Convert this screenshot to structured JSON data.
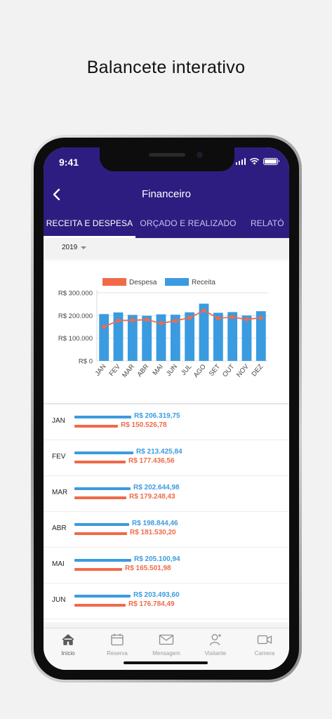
{
  "headline": "Balancete interativo",
  "status": {
    "time": "9:41"
  },
  "nav": {
    "title": "Financeiro"
  },
  "tabs": [
    "RECEITA E DESPESA",
    "ORÇADO E REALIZADO",
    "RELATÓ"
  ],
  "year": "2019",
  "colors": {
    "brand": "#2d1d80",
    "receita": "#3b9be0",
    "despesa": "#f06a4a"
  },
  "chart_data": {
    "type": "bar",
    "legend": [
      "Despesa",
      "Receita"
    ],
    "categories": [
      "JAN",
      "FEV",
      "MAR",
      "ABR",
      "MAI",
      "JUN",
      "JUL",
      "AGO",
      "SET",
      "OUT",
      "NOV",
      "DEZ"
    ],
    "yticks": [
      "R$ 300.000",
      "R$ 200.000",
      "R$ 100.000",
      "R$ 0"
    ],
    "ylim": [
      0,
      300000
    ],
    "series": [
      {
        "name": "Receita",
        "type": "bar",
        "values": [
          206319.75,
          213425.84,
          202644.98,
          198844.46,
          205100.94,
          203493.6,
          214000,
          252000,
          212000,
          215000,
          200000,
          219000
        ]
      },
      {
        "name": "Despesa",
        "type": "line",
        "values": [
          150526.78,
          177436.56,
          179248.43,
          181530.2,
          165501.98,
          176784.49,
          190000,
          222000,
          188000,
          193000,
          183000,
          190000
        ]
      }
    ],
    "grid": true,
    "legend_position": "top"
  },
  "rows": [
    {
      "month": "JAN",
      "receita": "R$ 206.319,75",
      "despesa": "R$ 150.526,78",
      "r": 206319.75,
      "d": 150526.78
    },
    {
      "month": "FEV",
      "receita": "R$ 213.425,84",
      "despesa": "R$ 177.436,56",
      "r": 213425.84,
      "d": 177436.56
    },
    {
      "month": "MAR",
      "receita": "R$ 202.644,98",
      "despesa": "R$ 179.248,43",
      "r": 202644.98,
      "d": 179248.43
    },
    {
      "month": "ABR",
      "receita": "R$ 198.844,46",
      "despesa": "R$ 181.530,20",
      "r": 198844.46,
      "d": 181530.2
    },
    {
      "month": "MAI",
      "receita": "R$ 205.100,94",
      "despesa": "R$ 165.501,98",
      "r": 205100.94,
      "d": 165501.98
    },
    {
      "month": "JUN",
      "receita": "R$ 203.493,60",
      "despesa": "R$ 176.784,49",
      "r": 203493.6,
      "d": 176784.49
    }
  ],
  "tabbar": [
    {
      "label": "Início",
      "icon": "home-icon",
      "active": true
    },
    {
      "label": "Reserva",
      "icon": "calendar-icon",
      "active": false
    },
    {
      "label": "Mensagem",
      "icon": "mail-icon",
      "active": false
    },
    {
      "label": "Visitante",
      "icon": "add-person-icon",
      "active": false
    },
    {
      "label": "Camera",
      "icon": "video-camera-icon",
      "active": false
    }
  ]
}
